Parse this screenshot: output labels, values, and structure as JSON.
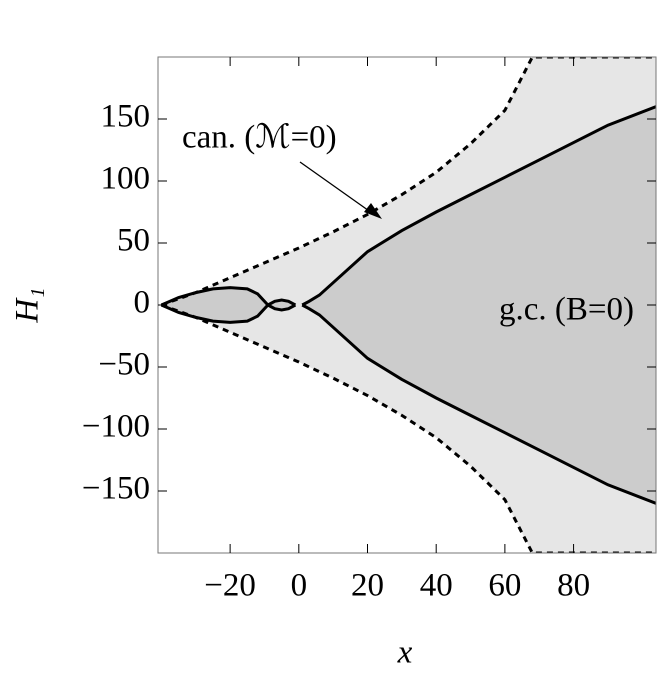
{
  "chart_data": {
    "type": "line",
    "xlabel": "x",
    "ylabel": "H₁",
    "annotations": [
      "can. (ℳ=0)",
      "g.c. (B=0)"
    ],
    "xlim": [
      -41,
      104
    ],
    "ylim": [
      -200,
      200
    ],
    "xticks": [
      {
        "value": -20,
        "label": "−20"
      },
      0,
      20,
      40,
      60,
      80
    ],
    "yticks": [
      {
        "value": -150,
        "label": "−150"
      },
      {
        "value": -100,
        "label": "−100"
      },
      {
        "value": -50,
        "label": "−50"
      },
      0,
      50,
      100,
      150
    ],
    "series": [
      {
        "x": [
          -40,
          -35,
          -30,
          -25,
          -20,
          -10,
          0,
          10,
          20,
          30,
          40,
          50,
          60,
          68,
          104
        ],
        "values": [
          0,
          5,
          10,
          16,
          22,
          34,
          46,
          59,
          73,
          89,
          107,
          130,
          157,
          200,
          200
        ],
        "color": "#000000",
        "dashed": true,
        "fill": "#e6e6e6"
      },
      {
        "x": [
          -40,
          -35,
          -30,
          -25,
          -20,
          -10,
          0,
          10,
          20,
          30,
          40,
          50,
          60,
          68,
          104
        ],
        "values": [
          0,
          -5,
          -10,
          -16,
          -22,
          -34,
          -46,
          -59,
          -73,
          -89,
          -107,
          -130,
          -157,
          -200,
          -200
        ],
        "color": "#000000",
        "dashed": true
      },
      {
        "x": [
          1,
          3,
          6,
          10,
          20,
          30,
          40,
          50,
          60,
          70,
          80,
          90,
          104
        ],
        "values": [
          0,
          3,
          8,
          18,
          43,
          60,
          75,
          89,
          103,
          117,
          131,
          145,
          160
        ],
        "color": "#000000",
        "dashed": false,
        "fill": "#cccccc"
      },
      {
        "x": [
          1,
          3,
          6,
          10,
          20,
          30,
          40,
          50,
          60,
          70,
          80,
          90,
          104
        ],
        "values": [
          0,
          -3,
          -8,
          -18,
          -43,
          -60,
          -75,
          -89,
          -103,
          -117,
          -131,
          -145,
          -160
        ],
        "color": "#000000",
        "dashed": false
      },
      {
        "x": [
          -40,
          -35,
          -30,
          -25,
          -20,
          -15,
          -12,
          -9
        ],
        "values": [
          0,
          6,
          10,
          13,
          14,
          13,
          9,
          0
        ],
        "color": "#000000",
        "dashed": false,
        "fill": "#cccccc"
      },
      {
        "x": [
          -40,
          -35,
          -30,
          -25,
          -20,
          -15,
          -12,
          -9
        ],
        "values": [
          0,
          -6,
          -10,
          -13,
          -14,
          -13,
          -9,
          0
        ],
        "color": "#000000",
        "dashed": false
      },
      {
        "x": [
          -9,
          -7,
          -5,
          -3,
          -1
        ],
        "values": [
          0,
          3,
          4,
          3,
          0
        ],
        "color": "#000000",
        "dashed": false,
        "fill": "#cccccc"
      },
      {
        "x": [
          -9,
          -7,
          -5,
          -3,
          -1
        ],
        "values": [
          0,
          -3,
          -4,
          -3,
          0
        ],
        "color": "#000000",
        "dashed": false
      }
    ]
  }
}
